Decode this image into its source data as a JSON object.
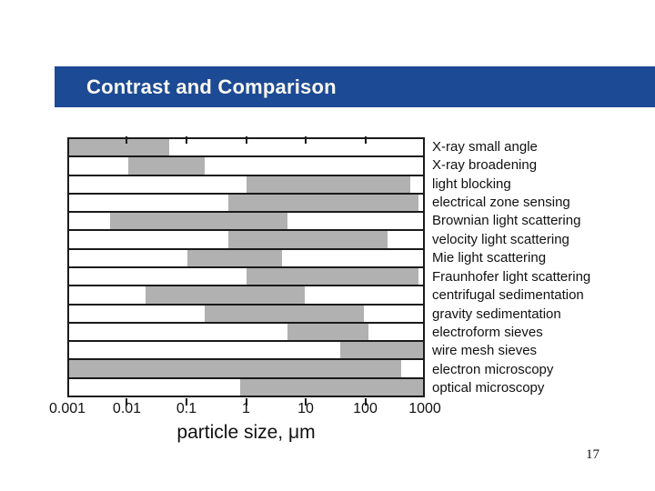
{
  "slide": {
    "title": "Contrast and Comparison",
    "title_bar_color": "#1d4a94",
    "title_text_color": "#fbfaf0",
    "page_number": "17"
  },
  "chart_data": {
    "type": "bar",
    "subtype": "horizontal-log-range",
    "xlabel": "particle size, μm",
    "xlim": [
      0.001,
      1000
    ],
    "x_scale": "log",
    "x_ticks": [
      "0.001",
      "0.01",
      "0.1",
      "1",
      "10",
      "100",
      "1000"
    ],
    "grid": "row-separators",
    "legend": "none",
    "bar_color": "#b1b1b1",
    "line_color": "#1a1a1a",
    "series": [
      {
        "label": "X-ray small angle",
        "min": 0.001,
        "max": 0.05
      },
      {
        "label": "X-ray broadening",
        "min": 0.01,
        "max": 0.2
      },
      {
        "label": "light blocking",
        "min": 1,
        "max": 600
      },
      {
        "label": "electrical zone sensing",
        "min": 0.5,
        "max": 850
      },
      {
        "label": "Brownian light scattering",
        "min": 0.005,
        "max": 5
      },
      {
        "label": "velocity light scattering",
        "min": 0.5,
        "max": 250
      },
      {
        "label": "Mie light scattering",
        "min": 0.1,
        "max": 4
      },
      {
        "label": "Fraunhofer light scattering",
        "min": 1,
        "max": 850
      },
      {
        "label": "centrifugal sedimentation",
        "min": 0.02,
        "max": 10
      },
      {
        "label": "gravity sedimentation",
        "min": 0.2,
        "max": 100
      },
      {
        "label": "electroform sieves",
        "min": 5,
        "max": 120
      },
      {
        "label": "wire mesh sieves",
        "min": 40,
        "max": 1000
      },
      {
        "label": "electron microscopy",
        "min": 0.001,
        "max": 430
      },
      {
        "label": "optical microscopy",
        "min": 0.8,
        "max": 1000
      }
    ]
  }
}
